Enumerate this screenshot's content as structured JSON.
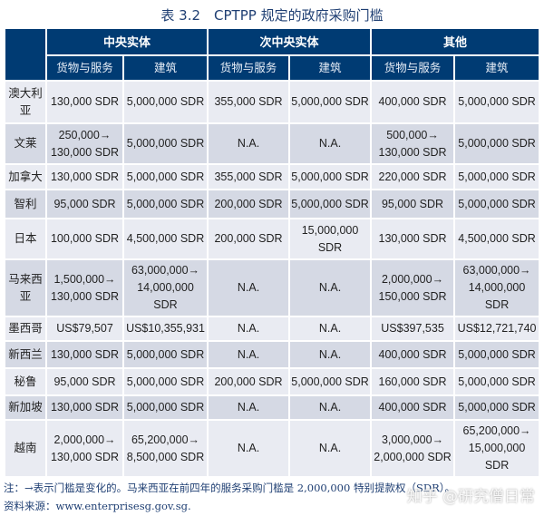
{
  "title": "表 3.2　CPTPP 规定的政府采购门槛",
  "groups": [
    "中央实体",
    "次中央实体",
    "其他"
  ],
  "subheaders": [
    "货物与服务",
    "建筑",
    "货物与服务",
    "建筑",
    "货物与服务",
    "建筑"
  ],
  "rows": [
    {
      "country": "澳大利亚",
      "cells": [
        "130,000 SDR",
        "5,000,000 SDR",
        "355,000 SDR",
        "5,000,000 SDR",
        "400,000 SDR",
        "5,000,000 SDR"
      ]
    },
    {
      "country": "文莱",
      "cells": [
        "250,000→ 130,000 SDR",
        "5,000,000 SDR",
        "N.A.",
        "N.A.",
        "500,000→ 130,000 SDR",
        "5,000,000 SDR"
      ]
    },
    {
      "country": "加拿大",
      "cells": [
        "130,000 SDR",
        "5,000,000 SDR",
        "355,000 SDR",
        "5,000,000 SDR",
        "220,000 SDR",
        "5,000,000 SDR"
      ]
    },
    {
      "country": "智利",
      "cells": [
        "95,000 SDR",
        "5,000,000 SDR",
        "200,000 SDR",
        "5,000,000 SDR",
        "95,000 SDR",
        "5,000,000 SDR"
      ]
    },
    {
      "country": "日本",
      "cells": [
        "100,000 SDR",
        "4,500,000 SDR",
        "200,000 SDR",
        "15,000,000 SDR",
        "130,000 SDR",
        "4,500,000 SDR"
      ]
    },
    {
      "country": "马来西亚",
      "cells": [
        "1,500,000→ 130,000 SDR",
        "63,000,000→ 14,000,000 SDR",
        "N.A.",
        "N.A.",
        "2,000,000→ 150,000 SDR",
        "63,000,000→ 14,000,000 SDR"
      ]
    },
    {
      "country": "墨西哥",
      "cells": [
        "US$79,507",
        "US$10,355,931",
        "N.A.",
        "N.A.",
        "US$397,535",
        "US$12,721,740"
      ]
    },
    {
      "country": "新西兰",
      "cells": [
        "130,000 SDR",
        "5,000,000 SDR",
        "N.A.",
        "N.A.",
        "400,000 SDR",
        "5,000,000 SDR"
      ]
    },
    {
      "country": "秘鲁",
      "cells": [
        "95,000 SDR",
        "5,000,000 SDR",
        "200,000 SDR",
        "5,000,000 SDR",
        "160,000 SDR",
        "5,000,000 SDR"
      ]
    },
    {
      "country": "新加坡",
      "cells": [
        "130,000 SDR",
        "5,000,000 SDR",
        "N.A.",
        "N.A.",
        "400,000 SDR",
        "5,000,000 SDR"
      ]
    },
    {
      "country": "越南",
      "cells": [
        "2,000,000→ 130,000 SDR",
        "65,200,000→ 8,500,000 SDR",
        "N.A.",
        "N.A.",
        "3,000,000→ 2,000,000 SDR",
        "65,200,000→ 15,000,000 SDR"
      ]
    }
  ],
  "note": "注：→表示门槛是变化的。马来西亚在前四年的服务采购门槛是 2,000,000 特别提款权（SDR）。",
  "source": "资料来源：www.enterprisesg.gov.sg.",
  "watermark": "知乎 @研究僧日常"
}
